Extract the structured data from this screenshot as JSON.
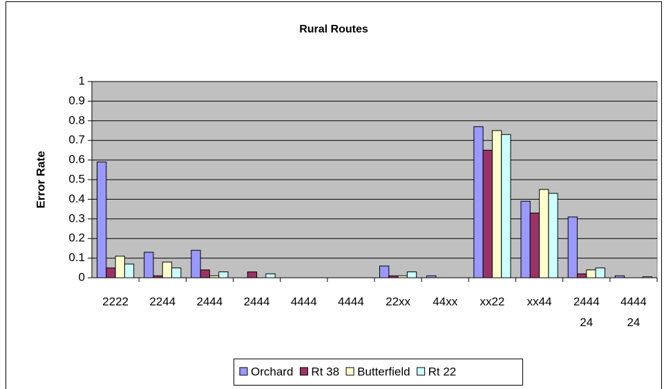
{
  "chart_data": {
    "type": "bar",
    "title": "Rural Routes",
    "y_label": "Error Rate",
    "categories": [
      "2222",
      "2244",
      "2444",
      "2444",
      "4444",
      "4444",
      "22xx",
      "44xx",
      "xx22",
      "xx44",
      "2444\n24",
      "4444\n24"
    ],
    "series": [
      {
        "name": "Orchard",
        "color": "#9999ff",
        "values": [
          0.59,
          0.13,
          0.14,
          0,
          0,
          0,
          0.06,
          0.01,
          0.77,
          0.39,
          0.31,
          0.01
        ]
      },
      {
        "name": "Rt 38",
        "color": "#993366",
        "values": [
          0.05,
          0.01,
          0.04,
          0.03,
          0,
          0,
          0.01,
          0,
          0.65,
          0.33,
          0.02,
          0
        ]
      },
      {
        "name": "Butterfield",
        "color": "#ffffcc",
        "values": [
          0.11,
          0.08,
          0.01,
          0,
          0,
          0,
          0.01,
          0,
          0.75,
          0.45,
          0.04,
          0
        ]
      },
      {
        "name": "Rt 22",
        "color": "#ccffff",
        "values": [
          0.07,
          0.05,
          0.03,
          0.02,
          0,
          0,
          0.03,
          0,
          0.73,
          0.43,
          0.05,
          0.005
        ]
      }
    ],
    "ylim": [
      0,
      1
    ],
    "yticks": [
      0,
      0.1,
      0.2,
      0.3,
      0.4,
      0.5,
      0.6,
      0.7,
      0.8,
      0.9,
      1
    ],
    "grid": true,
    "plot_background": "#c0c0c0",
    "legend": "bottom"
  }
}
